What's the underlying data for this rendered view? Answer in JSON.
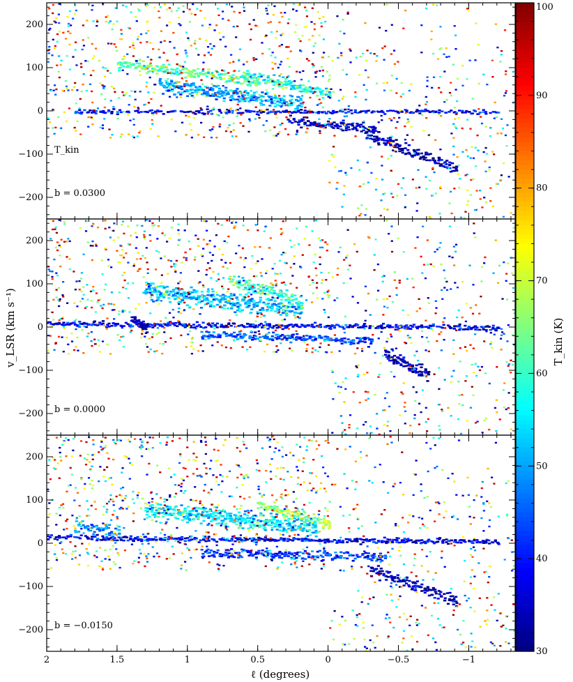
{
  "chart_data": [
    {
      "type": "heatmap",
      "panel": "top",
      "map_label": "T_kin",
      "latitude_label": "b = 0.0300",
      "xlabel": "ℓ (degrees)",
      "ylabel": "v_LSR (km s⁻¹)",
      "xlim": [
        2,
        -1.33
      ],
      "ylim": [
        -250,
        250
      ],
      "x_ticks": [
        2,
        1.5,
        1,
        0.5,
        0,
        -0.5,
        -1
      ],
      "y_ticks": [
        -200,
        -100,
        0,
        100,
        200
      ],
      "features": [
        {
          "l_start": 1.2,
          "l_end": 0.2,
          "v_start": 60,
          "v_end": 20,
          "width": 40,
          "mean": 50
        },
        {
          "l_start": 0.6,
          "l_end": 0.0,
          "v_start": 85,
          "v_end": 40,
          "width": 30,
          "mean": 58
        },
        {
          "l_start": 1.8,
          "l_end": -1.2,
          "v_start": 0,
          "v_end": 0,
          "width": 12,
          "mean": 38
        },
        {
          "l_start": 0.3,
          "l_end": -0.35,
          "v_start": -20,
          "v_end": -40,
          "width": 25,
          "mean": 34
        },
        {
          "l_start": -0.25,
          "l_end": -0.9,
          "v_start": -50,
          "v_end": -130,
          "width": 30,
          "mean": 33
        },
        {
          "l_start": 1.5,
          "l_end": 0.5,
          "v_start": 110,
          "v_end": 70,
          "width": 30,
          "mean": 62
        }
      ]
    },
    {
      "type": "heatmap",
      "panel": "middle",
      "map_label": "",
      "latitude_label": "b = 0.0000",
      "xlim": [
        2,
        -1.33
      ],
      "ylim": [
        -250,
        250
      ],
      "x_ticks": [
        2,
        1.5,
        1,
        0.5,
        0,
        -0.5,
        -1
      ],
      "y_ticks": [
        -200,
        -100,
        0,
        100,
        200
      ],
      "features": [
        {
          "l_start": 1.3,
          "l_end": 0.2,
          "v_start": 85,
          "v_end": 40,
          "width": 45,
          "mean": 52
        },
        {
          "l_start": 0.7,
          "l_end": 0.2,
          "v_start": 110,
          "v_end": 60,
          "width": 35,
          "mean": 60
        },
        {
          "l_start": 2.0,
          "l_end": -1.2,
          "v_start": 10,
          "v_end": 0,
          "width": 15,
          "mean": 38
        },
        {
          "l_start": 0.9,
          "l_end": -0.3,
          "v_start": -15,
          "v_end": -30,
          "width": 25,
          "mean": 44
        },
        {
          "l_start": -0.4,
          "l_end": -0.7,
          "v_start": -60,
          "v_end": -110,
          "width": 35,
          "mean": 33
        },
        {
          "l_start": 1.4,
          "l_end": 1.3,
          "v_start": 20,
          "v_end": 0,
          "width": 30,
          "mean": 34
        }
      ]
    },
    {
      "type": "heatmap",
      "panel": "bottom",
      "map_label": "",
      "latitude_label": "b = −0.0150",
      "xlim": [
        2,
        -1.33
      ],
      "ylim": [
        -250,
        250
      ],
      "x_ticks": [
        2,
        1.5,
        1,
        0.5,
        0,
        -0.5,
        -1
      ],
      "y_ticks": [
        -200,
        -100,
        0,
        100,
        200
      ],
      "features": [
        {
          "l_start": 1.3,
          "l_end": 0.1,
          "v_start": 80,
          "v_end": 40,
          "width": 45,
          "mean": 55
        },
        {
          "l_start": 0.5,
          "l_end": 0.0,
          "v_start": 90,
          "v_end": 45,
          "width": 30,
          "mean": 66
        },
        {
          "l_start": 2.0,
          "l_end": -1.2,
          "v_start": 15,
          "v_end": 5,
          "width": 15,
          "mean": 38
        },
        {
          "l_start": 0.9,
          "l_end": -0.4,
          "v_start": -20,
          "v_end": -30,
          "width": 25,
          "mean": 42
        },
        {
          "l_start": -0.3,
          "l_end": -0.9,
          "v_start": -60,
          "v_end": -130,
          "width": 30,
          "mean": 33
        },
        {
          "l_start": 1.8,
          "l_end": 1.5,
          "v_start": 40,
          "v_end": 30,
          "width": 30,
          "mean": 48
        }
      ]
    }
  ],
  "colorbar": {
    "label": "T_kin (K)",
    "min": 30,
    "max": 100,
    "ticks": [
      30,
      40,
      50,
      60,
      70,
      80,
      90,
      100
    ],
    "colormap": "jet",
    "colors": [
      "#00007f",
      "#0000ff",
      "#007fff",
      "#00ffff",
      "#7fff7f",
      "#ffff00",
      "#ff7f00",
      "#ff0000",
      "#7f0000"
    ]
  },
  "labels": {
    "x_ticks": [
      "2",
      "1.5",
      "1",
      "0.5",
      "0",
      "−0.5",
      "−1"
    ],
    "y_ticks": [
      "−200",
      "−100",
      "0",
      "100",
      "200"
    ],
    "cb_ticks": [
      "30",
      "40",
      "50",
      "60",
      "70",
      "80",
      "90",
      "100"
    ]
  }
}
